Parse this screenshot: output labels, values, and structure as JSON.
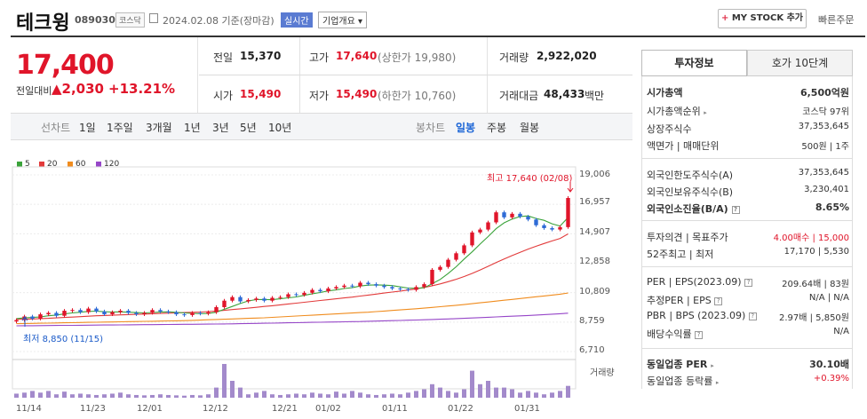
{
  "header": {
    "name": "테크윙",
    "code": "089030",
    "market": "코스닥",
    "date": "2024.02.08 기준(장마감)",
    "realtime": "실시간",
    "company_select": "기업개요 ▾",
    "mystock": "MY STOCK 추가",
    "mystock_plus": "+",
    "quick_order": "빠른주문"
  },
  "price": {
    "current": "17,400",
    "prev_label": "전일대비",
    "change": "▲2,030",
    "change_pct": "+13.21%"
  },
  "quotes": {
    "prev_close_label": "전일",
    "prev_close": "15,370",
    "high_label": "고가",
    "high": "17,640",
    "upper_limit": "(상한가 19,980)",
    "volume_label": "거래량",
    "volume": "2,922,020",
    "open_label": "시가",
    "open": "15,490",
    "low_label": "저가",
    "low": "15,490",
    "lower_limit": "(하한가 10,760)",
    "amount_label": "거래대금",
    "amount": "48,433",
    "amount_unit": "백만"
  },
  "periods": {
    "line_label": "선차트",
    "line_items": [
      "1일",
      "1주일",
      "3개월",
      "1년",
      "3년",
      "5년",
      "10년"
    ],
    "candle_label": "봉차트",
    "candle_items": [
      "일봉",
      "주봉",
      "월봉"
    ],
    "active": "일봉"
  },
  "chart": {
    "legend": [
      "5",
      "20",
      "60",
      "120"
    ],
    "legend_colors": [
      "#3aa33a",
      "#e23a3a",
      "#f08c1e",
      "#9646c8"
    ],
    "y_ticks": [
      "19,006",
      "16,957",
      "14,907",
      "12,858",
      "10,809",
      "8,759",
      "6,710"
    ],
    "x_ticks": [
      "11/14",
      "11/23",
      "12/01",
      "12/12",
      "12/21",
      "01/02",
      "01/11",
      "01/22",
      "01/31"
    ],
    "high_note": "최고 17,640 (02/08)",
    "low_note": "최저 8,850 (11/15)",
    "volume_label": "거래량"
  },
  "chart_data": {
    "type": "candlestick",
    "title": "",
    "ylim": [
      6710,
      19006
    ],
    "y_ticks": [
      19006,
      16957,
      14907,
      12858,
      10809,
      8759,
      6710
    ],
    "x_ticks": [
      "11/14",
      "11/23",
      "12/01",
      "12/12",
      "12/21",
      "01/02",
      "01/11",
      "01/22",
      "01/31"
    ],
    "close": [
      8900,
      9150,
      9000,
      9300,
      9400,
      9200,
      9550,
      9600,
      9450,
      9700,
      9500,
      9300,
      9450,
      9550,
      9400,
      9300,
      9400,
      9600,
      9500,
      9450,
      9300,
      9250,
      9400,
      9350,
      9450,
      9800,
      10250,
      10500,
      10200,
      10300,
      10400,
      10250,
      10450,
      10500,
      10700,
      10650,
      10800,
      11000,
      10900,
      11100,
      11200,
      11300,
      11250,
      11500,
      11400,
      11300,
      11200,
      11100,
      11050,
      11000,
      11200,
      11400,
      12400,
      12600,
      13100,
      13550,
      14100,
      15000,
      15200,
      15700,
      16400,
      16050,
      16300,
      16100,
      15900,
      15500,
      15300,
      15200,
      15370,
      17400
    ],
    "ma5": [
      9000,
      9050,
      9080,
      9120,
      9200,
      9250,
      9330,
      9400,
      9450,
      9500,
      9520,
      9480,
      9460,
      9470,
      9450,
      9420,
      9400,
      9430,
      9460,
      9470,
      9440,
      9400,
      9370,
      9350,
      9360,
      9450,
      9650,
      9850,
      10050,
      10230,
      10330,
      10330,
      10320,
      10380,
      10450,
      10510,
      10620,
      10730,
      10820,
      10930,
      11000,
      11100,
      11150,
      11270,
      11330,
      11350,
      11330,
      11300,
      11210,
      11130,
      11110,
      11150,
      11430,
      11730,
      12140,
      12610,
      13150,
      13650,
      14190,
      14710,
      15260,
      15670,
      15930,
      16110,
      16150,
      15970,
      15840,
      15600,
      15450,
      16040
    ],
    "ma20": [
      8950,
      8960,
      8980,
      9000,
      9020,
      9050,
      9080,
      9110,
      9140,
      9170,
      9200,
      9220,
      9240,
      9260,
      9280,
      9300,
      9320,
      9340,
      9360,
      9380,
      9400,
      9420,
      9440,
      9460,
      9490,
      9530,
      9580,
      9630,
      9680,
      9730,
      9790,
      9850,
      9900,
      9960,
      10020,
      10080,
      10140,
      10200,
      10260,
      10320,
      10380,
      10440,
      10500,
      10570,
      10640,
      10710,
      10780,
      10850,
      10920,
      10990,
      11070,
      11170,
      11290,
      11420,
      11570,
      11740,
      11930,
      12150,
      12390,
      12640,
      12900,
      13150,
      13390,
      13620,
      13840,
      14040,
      14230,
      14410,
      14580,
      14900
    ],
    "ma60": [
      8650,
      8660,
      8670,
      8680,
      8690,
      8700,
      8710,
      8720,
      8730,
      8740,
      8750,
      8760,
      8770,
      8780,
      8790,
      8800,
      8810,
      8820,
      8830,
      8840,
      8850,
      8860,
      8880,
      8900,
      8920,
      8940,
      8960,
      8980,
      9000,
      9020,
      9040,
      9060,
      9090,
      9120,
      9150,
      9180,
      9210,
      9240,
      9270,
      9300,
      9330,
      9360,
      9390,
      9420,
      9450,
      9490,
      9530,
      9570,
      9610,
      9650,
      9690,
      9730,
      9780,
      9830,
      9880,
      9930,
      9980,
      10040,
      10100,
      10160,
      10220,
      10280,
      10340,
      10400,
      10460,
      10520,
      10580,
      10640,
      10700,
      10780
    ],
    "ma120": [
      8500,
      8505,
      8510,
      8515,
      8520,
      8525,
      8530,
      8535,
      8540,
      8545,
      8550,
      8555,
      8560,
      8565,
      8570,
      8575,
      8580,
      8585,
      8590,
      8595,
      8600,
      8605,
      8610,
      8615,
      8620,
      8625,
      8630,
      8640,
      8650,
      8660,
      8670,
      8680,
      8690,
      8700,
      8710,
      8720,
      8730,
      8740,
      8750,
      8760,
      8770,
      8780,
      8790,
      8800,
      8815,
      8830,
      8845,
      8860,
      8875,
      8890,
      8905,
      8920,
      8940,
      8960,
      8980,
      9000,
      9020,
      9045,
      9070,
      9095,
      9120,
      9145,
      9170,
      9195,
      9220,
      9250,
      9280,
      9310,
      9340,
      9380
    ],
    "volume_rel": [
      0.12,
      0.15,
      0.2,
      0.15,
      0.2,
      0.1,
      0.18,
      0.1,
      0.12,
      0.1,
      0.08,
      0.1,
      0.12,
      0.15,
      0.1,
      0.08,
      0.07,
      0.08,
      0.1,
      0.08,
      0.07,
      0.06,
      0.08,
      0.07,
      0.1,
      0.3,
      1.0,
      0.5,
      0.3,
      0.1,
      0.15,
      0.2,
      0.1,
      0.08,
      0.1,
      0.12,
      0.1,
      0.15,
      0.12,
      0.1,
      0.18,
      0.12,
      0.2,
      0.15,
      0.1,
      0.08,
      0.1,
      0.12,
      0.1,
      0.15,
      0.2,
      0.25,
      0.4,
      0.3,
      0.2,
      0.15,
      0.25,
      0.8,
      0.4,
      0.5,
      0.3,
      0.3,
      0.25,
      0.15,
      0.2,
      0.15,
      0.1,
      0.15,
      0.2,
      0.35
    ]
  },
  "panel": {
    "tab_invest": "투자정보",
    "tab_order": "호가 10단계",
    "rows": [
      {
        "label": "시가총액",
        "value": "6,500억원",
        "bold": true
      },
      {
        "label": "시가총액순위",
        "value": "코스닥 97위"
      },
      {
        "label": "상장주식수",
        "value": "37,353,645"
      },
      {
        "label": "액면가 | 매매단위",
        "value": "500원 | 1주"
      },
      {
        "label": "외국인한도주식수(A)",
        "value": "37,353,645"
      },
      {
        "label": "외국인보유주식수(B)",
        "value": "3,230,401"
      },
      {
        "label": "외국인소진율(B/A)",
        "value": "8.65%",
        "bold": true
      },
      {
        "label": "투자의견 | 목표주가",
        "value": "4.00매수 | 15,000"
      },
      {
        "label": "52주최고 | 최저",
        "value": "17,170 | 5,530"
      },
      {
        "label": "PER | EPS(2023.09)",
        "value": "209.64배 | 83원"
      },
      {
        "label": "추정PER | EPS",
        "value": "N/A | N/A"
      },
      {
        "label": "PBR | BPS (2023.09)",
        "value": "2.97배 | 5,850원"
      },
      {
        "label": "배당수익률",
        "value": "N/A"
      },
      {
        "label": "동일업종 PER",
        "value": "30.10배",
        "bold": true
      },
      {
        "label": "동일업종 등락률",
        "value": "+0.39%"
      }
    ]
  }
}
